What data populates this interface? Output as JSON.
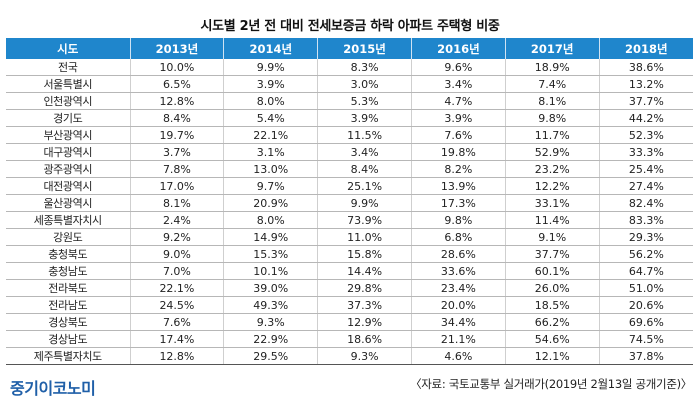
{
  "title": "시도별 2년 전 대비 전세보증금 하락 아파트 주택형 비중",
  "header": [
    "시도",
    "2013년",
    "2014년",
    "2015년",
    "2016년",
    "2017년",
    "2018년"
  ],
  "rows": [
    [
      "전국",
      "10.0%",
      "9.9%",
      "8.3%",
      "9.6%",
      "18.9%",
      "38.6%"
    ],
    [
      "서울특별시",
      "6.5%",
      "3.9%",
      "3.0%",
      "3.4%",
      "7.4%",
      "13.2%"
    ],
    [
      "인천광역시",
      "12.8%",
      "8.0%",
      "5.3%",
      "4.7%",
      "8.1%",
      "37.7%"
    ],
    [
      "경기도",
      "8.4%",
      "5.4%",
      "3.9%",
      "3.9%",
      "9.8%",
      "44.2%"
    ],
    [
      "부산광역시",
      "19.7%",
      "22.1%",
      "11.5%",
      "7.6%",
      "11.7%",
      "52.3%"
    ],
    [
      "대구광역시",
      "3.7%",
      "3.1%",
      "3.4%",
      "19.8%",
      "52.9%",
      "33.3%"
    ],
    [
      "광주광역시",
      "7.8%",
      "13.0%",
      "8.4%",
      "8.2%",
      "23.2%",
      "25.4%"
    ],
    [
      "대전광역시",
      "17.0%",
      "9.7%",
      "25.1%",
      "13.9%",
      "12.2%",
      "27.4%"
    ],
    [
      "울산광역시",
      "8.1%",
      "20.9%",
      "9.9%",
      "17.3%",
      "33.1%",
      "82.4%"
    ],
    [
      "세종특별자치시",
      "2.4%",
      "8.0%",
      "73.9%",
      "9.8%",
      "11.4%",
      "83.3%"
    ],
    [
      "강원도",
      "9.2%",
      "14.9%",
      "11.0%",
      "6.8%",
      "9.1%",
      "29.3%"
    ],
    [
      "충청북도",
      "9.0%",
      "15.3%",
      "15.8%",
      "28.6%",
      "37.7%",
      "56.2%"
    ],
    [
      "충청남도",
      "7.0%",
      "10.1%",
      "14.4%",
      "33.6%",
      "60.1%",
      "64.7%"
    ],
    [
      "전라북도",
      "22.1%",
      "39.0%",
      "29.8%",
      "23.4%",
      "26.0%",
      "51.0%"
    ],
    [
      "전라남도",
      "24.5%",
      "49.3%",
      "37.3%",
      "20.0%",
      "18.5%",
      "20.6%"
    ],
    [
      "경상북도",
      "7.6%",
      "9.3%",
      "12.9%",
      "34.4%",
      "66.2%",
      "69.6%"
    ],
    [
      "경상남도",
      "17.4%",
      "22.9%",
      "18.6%",
      "21.1%",
      "54.6%",
      "74.5%"
    ],
    [
      "제주특별자치도",
      "12.8%",
      "29.5%",
      "9.3%",
      "4.6%",
      "12.1%",
      "37.8%"
    ]
  ],
  "logo": "중기이코노미",
  "source": "〈자료: 국토교통부 실거래가(2019년 2월13일 공개기준)〉",
  "colors": {
    "header_bg": "#1f86cc",
    "logo": "#1f5fa8"
  }
}
